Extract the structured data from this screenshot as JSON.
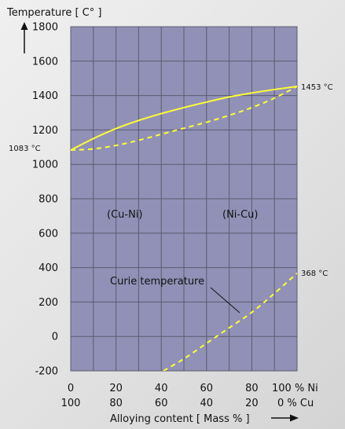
{
  "chart_data": {
    "type": "line",
    "y_axis_title": "Temperature [ C° ]",
    "x_axis_title": "Alloying content [ Mass % ]",
    "ylim": [
      -200,
      1800
    ],
    "xlim": [
      0,
      100
    ],
    "y_ticks": [
      -200,
      0,
      200,
      400,
      600,
      800,
      1000,
      1200,
      1400,
      1600,
      1800
    ],
    "x_ticks_ni": [
      "0",
      "20",
      "40",
      "60",
      "80",
      "100 % Ni"
    ],
    "x_ticks_cu": [
      "100",
      "80",
      "60",
      "40",
      "20",
      "0 % Cu"
    ],
    "x_tick_values": [
      0,
      20,
      40,
      60,
      80,
      100
    ],
    "grid": true,
    "plot_background": "#9191b7",
    "line_color": "#ffff33",
    "series": [
      {
        "style": "solid",
        "x": [
          0,
          10,
          20,
          30,
          40,
          50,
          60,
          70,
          80,
          90,
          100
        ],
        "y": [
          1083,
          1150,
          1208,
          1255,
          1295,
          1330,
          1362,
          1392,
          1415,
          1435,
          1453
        ]
      },
      {
        "style": "dashed",
        "x": [
          0,
          10,
          20,
          30,
          40,
          50,
          60,
          70,
          80,
          90,
          100
        ],
        "y": [
          1083,
          1090,
          1110,
          1140,
          1175,
          1210,
          1245,
          1285,
          1330,
          1385,
          1453
        ]
      },
      {
        "style": "dashed",
        "x": [
          41,
          50,
          60,
          70,
          80,
          90,
          100
        ],
        "y": [
          -200,
          -130,
          -40,
          50,
          140,
          250,
          368
        ]
      }
    ],
    "annotations": {
      "left_melting": "1083 °C",
      "right_melting": "1453 °C",
      "curie_end": "368 °C",
      "curie_label": "Curie temperature",
      "region_left": "(Cu-Ni)",
      "region_right": "(Ni-Cu)"
    }
  }
}
